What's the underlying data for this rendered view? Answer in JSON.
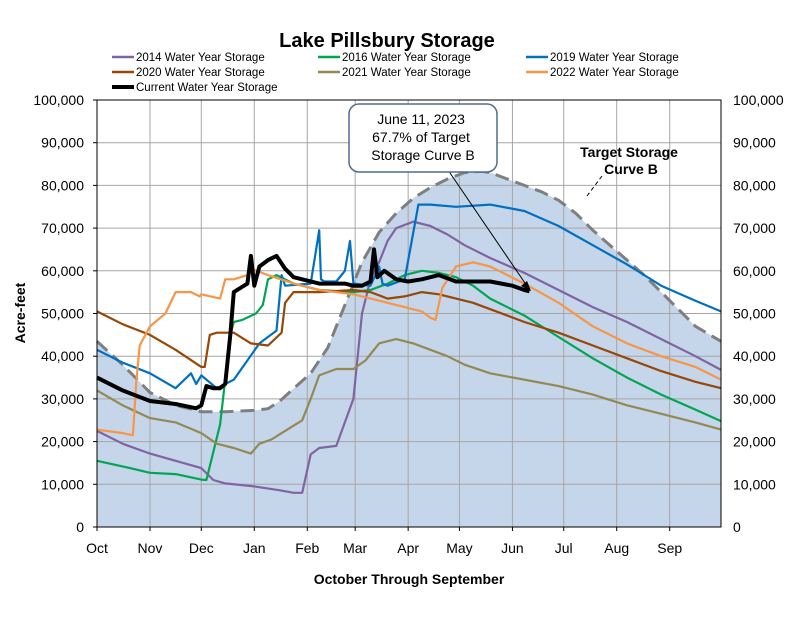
{
  "chart_data": {
    "type": "line",
    "title": "Lake Pillsbury Storage",
    "xlabel": "October Through September",
    "ylabel": "Acre-feet",
    "ylim": [
      0,
      100000
    ],
    "yticks": [
      0,
      10000,
      20000,
      30000,
      40000,
      50000,
      60000,
      70000,
      80000,
      90000,
      100000
    ],
    "ytick_labels": [
      "0",
      "10,000",
      "20,000",
      "30,000",
      "40,000",
      "50,000",
      "60,000",
      "70,000",
      "80,000",
      "90,000",
      "100,000"
    ],
    "xlim": [
      0,
      365
    ],
    "x_units": "days since Oct 1",
    "month_ticks": [
      0,
      31,
      61,
      92,
      123,
      151,
      182,
      212,
      243,
      273,
      304,
      335
    ],
    "month_labels": [
      "Oct",
      "Nov",
      "Dec",
      "Jan",
      "Feb",
      "Mar",
      "Apr",
      "May",
      "Jun",
      "Jul",
      "Aug",
      "Sep"
    ],
    "grid": true,
    "legend_position": "top",
    "annotation": {
      "lines": [
        "June 11, 2023",
        "67.7% of Target",
        "Storage Curve B"
      ],
      "points_to": [
        253,
        55200
      ]
    },
    "target_label": [
      "Target Storage",
      "Curve B"
    ],
    "target_curve": {
      "name": "Target Storage Curve B",
      "color": "#7f7f7f",
      "fill": "#c5d5ea",
      "x": [
        0,
        15,
        31,
        46,
        61,
        75,
        92,
        100,
        107,
        118,
        125,
        135,
        145,
        155,
        165,
        175,
        185,
        195,
        205,
        215,
        225,
        230,
        240,
        250,
        260,
        270,
        280,
        290,
        300,
        310,
        320,
        330,
        340,
        350,
        365
      ],
      "y": [
        43500,
        38000,
        31500,
        28500,
        27000,
        27000,
        27300,
        27700,
        29500,
        33500,
        36000,
        42000,
        52000,
        62000,
        69000,
        73500,
        77000,
        79500,
        81500,
        83000,
        83300,
        83000,
        81500,
        80000,
        78500,
        76500,
        73500,
        69500,
        66000,
        62500,
        59000,
        55000,
        51000,
        47000,
        43500
      ]
    },
    "series": [
      {
        "name": "2014 Water Year Storage",
        "color": "#8064a2",
        "x": [
          0,
          15,
          31,
          46,
          61,
          68,
          75,
          92,
          107,
          115,
          120,
          125,
          130,
          140,
          150,
          155,
          160,
          165,
          170,
          175,
          185,
          195,
          205,
          215,
          230,
          250,
          270,
          290,
          310,
          330,
          350,
          365
        ],
        "y": [
          22500,
          19500,
          17200,
          15500,
          13800,
          11000,
          10200,
          9500,
          8600,
          8000,
          8000,
          17000,
          18500,
          19000,
          30000,
          50000,
          58000,
          62000,
          67000,
          70000,
          71500,
          70500,
          68500,
          66000,
          63000,
          59500,
          55500,
          51500,
          48000,
          44000,
          40000,
          36800
        ]
      },
      {
        "name": "2016 Water Year Storage",
        "color": "#00a651",
        "x": [
          0,
          15,
          31,
          46,
          61,
          64,
          72,
          78,
          80,
          85,
          93,
          97,
          100,
          105,
          115,
          130,
          150,
          160,
          170,
          180,
          190,
          200,
          210,
          220,
          230,
          250,
          270,
          290,
          310,
          330,
          350,
          365
        ],
        "y": [
          15500,
          14200,
          12700,
          12400,
          11100,
          11000,
          24000,
          45000,
          48000,
          48500,
          50000,
          52000,
          58000,
          59000,
          57000,
          55500,
          55000,
          55500,
          57000,
          59000,
          60000,
          59500,
          58500,
          56500,
          53500,
          49500,
          44500,
          39500,
          35000,
          31000,
          27500,
          24800
        ]
      },
      {
        "name": "2019 Water Year Storage",
        "color": "#0070c0",
        "x": [
          0,
          15,
          31,
          46,
          55,
          58,
          61,
          70,
          80,
          95,
          105,
          108,
          110,
          125,
          130,
          131,
          133,
          140,
          145,
          148,
          150,
          160,
          165,
          167,
          170,
          180,
          188,
          195,
          210,
          230,
          250,
          270,
          290,
          310,
          330,
          350,
          365
        ],
        "y": [
          41500,
          38500,
          36000,
          32500,
          36000,
          33500,
          35500,
          32500,
          34500,
          43000,
          46000,
          59000,
          56500,
          57000,
          69500,
          58000,
          57500,
          57500,
          60000,
          67000,
          57000,
          56500,
          61000,
          57000,
          56500,
          58000,
          75500,
          75500,
          75000,
          75500,
          74000,
          70500,
          66000,
          61500,
          56500,
          53000,
          50500
        ]
      },
      {
        "name": "2020 Water Year Storage",
        "color": "#974706",
        "x": [
          0,
          15,
          31,
          46,
          61,
          63,
          66,
          70,
          80,
          90,
          100,
          108,
          110,
          115,
          130,
          150,
          160,
          170,
          180,
          190,
          200,
          210,
          220,
          230,
          250,
          270,
          290,
          310,
          330,
          350,
          365
        ],
        "y": [
          50500,
          47500,
          45000,
          41500,
          37500,
          37500,
          45000,
          45500,
          45500,
          43000,
          42500,
          45500,
          52500,
          55000,
          55000,
          55500,
          55000,
          53500,
          54000,
          55000,
          54500,
          53500,
          52500,
          51000,
          48000,
          45500,
          42500,
          39500,
          36500,
          34000,
          32500
        ]
      },
      {
        "name": "2021 Water Year Storage",
        "color": "#938953",
        "x": [
          0,
          15,
          31,
          46,
          61,
          70,
          80,
          90,
          95,
          102,
          110,
          120,
          125,
          130,
          140,
          150,
          157,
          165,
          175,
          185,
          195,
          205,
          215,
          230,
          250,
          270,
          290,
          310,
          330,
          350,
          365
        ],
        "y": [
          32000,
          28500,
          25500,
          24500,
          22000,
          19500,
          18500,
          17200,
          19500,
          20500,
          22500,
          25000,
          30000,
          35500,
          37000,
          37000,
          39000,
          43000,
          44000,
          43000,
          41500,
          40000,
          38000,
          36000,
          34500,
          33000,
          31000,
          28500,
          26500,
          24500,
          22800
        ]
      },
      {
        "name": "2022 Water Year Storage",
        "color": "#f79646",
        "x": [
          0,
          15,
          21,
          23,
          25,
          31,
          40,
          46,
          55,
          60,
          61,
          72,
          75,
          80,
          88,
          90,
          100,
          115,
          130,
          150,
          170,
          190,
          195,
          198,
          202,
          210,
          220,
          230,
          250,
          270,
          290,
          310,
          330,
          350,
          365
        ],
        "y": [
          22800,
          22000,
          21500,
          34000,
          42500,
          47000,
          50000,
          55000,
          55000,
          54000,
          54500,
          53500,
          58000,
          58000,
          59000,
          60500,
          59000,
          57000,
          55500,
          54500,
          52500,
          50500,
          49000,
          48500,
          56000,
          61000,
          62000,
          61000,
          57000,
          52500,
          47000,
          43000,
          40000,
          37500,
          34500
        ]
      },
      {
        "name": "Current Water Year Storage",
        "color": "#000000",
        "x": [
          0,
          15,
          31,
          46,
          58,
          61,
          64,
          68,
          72,
          75,
          78,
          80,
          88,
          90,
          92,
          95,
          100,
          105,
          110,
          115,
          120,
          130,
          140,
          145,
          150,
          155,
          160,
          162,
          164,
          168,
          175,
          182,
          190,
          200,
          210,
          230,
          243,
          250,
          253
        ],
        "y": [
          35000,
          32000,
          29500,
          28800,
          27800,
          28500,
          33000,
          32500,
          32500,
          33500,
          45000,
          55000,
          57000,
          63500,
          56500,
          61000,
          62500,
          63500,
          60500,
          58500,
          58000,
          57000,
          57000,
          57000,
          56500,
          56500,
          57500,
          65000,
          58500,
          60000,
          58000,
          57500,
          58000,
          59000,
          57500,
          57500,
          56500,
          55500,
          55200
        ]
      }
    ]
  }
}
